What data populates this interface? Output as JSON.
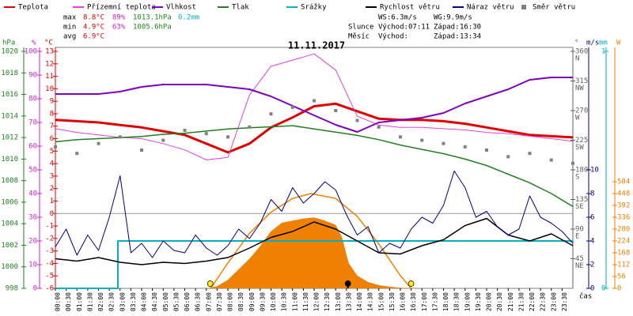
{
  "chart_data": {
    "type": "weather",
    "title": "11.11.2017",
    "x_axis_label": "čas",
    "xlim": [
      0,
      24
    ],
    "x": [
      0,
      1,
      2,
      3,
      4,
      5,
      6,
      7,
      8,
      9,
      10,
      11,
      12,
      13,
      14,
      15,
      16,
      17,
      18,
      19,
      20,
      21,
      22,
      23,
      24
    ],
    "xticks": [
      {
        "value": 0,
        "label": "00:00"
      },
      {
        "value": 0.5,
        "label": "00:30"
      },
      {
        "value": 1,
        "label": "01:00"
      },
      {
        "value": 1.5,
        "label": "01:30"
      },
      {
        "value": 2,
        "label": "02:00"
      },
      {
        "value": 2.5,
        "label": "02:30"
      },
      {
        "value": 3,
        "label": "03:00"
      },
      {
        "value": 3.5,
        "label": "03:30"
      },
      {
        "value": 4,
        "label": "04:00"
      },
      {
        "value": 4.5,
        "label": "04:30"
      },
      {
        "value": 5,
        "label": "05:00"
      },
      {
        "value": 5.5,
        "label": "05:30"
      },
      {
        "value": 6,
        "label": "06:00"
      },
      {
        "value": 6.5,
        "label": "06:30"
      },
      {
        "value": 7,
        "label": "07:00"
      },
      {
        "value": 7.5,
        "label": "07:30"
      },
      {
        "value": 8,
        "label": "08:00"
      },
      {
        "value": 8.5,
        "label": "08:30"
      },
      {
        "value": 9,
        "label": "09:00"
      },
      {
        "value": 9.5,
        "label": "09:30"
      },
      {
        "value": 10,
        "label": "10:00"
      },
      {
        "value": 10.5,
        "label": "10:30"
      },
      {
        "value": 11,
        "label": "11:00"
      },
      {
        "value": 11.5,
        "label": "11:30"
      },
      {
        "value": 12,
        "label": "12:00"
      },
      {
        "value": 12.5,
        "label": "12:30"
      },
      {
        "value": 13,
        "label": "13:00"
      },
      {
        "value": 13.5,
        "label": "13:30"
      },
      {
        "value": 14,
        "label": "14:00"
      },
      {
        "value": 14.5,
        "label": "14:30"
      },
      {
        "value": 15,
        "label": "15:00"
      },
      {
        "value": 15.5,
        "label": "15:30"
      },
      {
        "value": 16,
        "label": "16:00"
      },
      {
        "value": 16.5,
        "label": "16:30"
      },
      {
        "value": 17,
        "label": "17:00"
      },
      {
        "value": 17.5,
        "label": "17:30"
      },
      {
        "value": 18,
        "label": "18:00"
      },
      {
        "value": 18.5,
        "label": "18:30"
      },
      {
        "value": 19,
        "label": "19:00"
      },
      {
        "value": 19.5,
        "label": "19:30"
      },
      {
        "value": 20,
        "label": "20:00"
      },
      {
        "value": 20.5,
        "label": "20:30"
      },
      {
        "value": 21,
        "label": "21:00"
      },
      {
        "value": 21.5,
        "label": "21:30"
      },
      {
        "value": 22,
        "label": "22:00"
      },
      {
        "value": 22.5,
        "label": "22:30"
      },
      {
        "value": 23,
        "label": "23:00"
      },
      {
        "value": 23.5,
        "label": "23:30"
      }
    ],
    "axes": [
      {
        "label": "hPa",
        "color": "#208020",
        "lim": [
          998,
          1020
        ],
        "ticks": [
          1020,
          1018,
          1016,
          1014,
          1012,
          1010,
          1008,
          1006,
          1004,
          1002,
          1000,
          998
        ]
      },
      {
        "label": "%",
        "color": "#d020d0",
        "lim": [
          0,
          100
        ],
        "ticks": [
          100,
          90,
          80,
          70,
          60,
          50,
          40,
          30,
          20,
          10,
          0
        ]
      },
      {
        "label": "°C",
        "color": "#e00000",
        "lim": [
          -6,
          13
        ],
        "ticks": [
          13,
          12,
          11,
          10,
          9,
          8,
          7,
          6,
          5,
          4,
          3,
          2,
          1,
          0,
          -1,
          -2,
          -3,
          -4,
          -5,
          -6
        ]
      },
      {
        "label": "°",
        "color": "#606060",
        "lim": [
          0,
          360
        ],
        "ticks": [
          360,
          315,
          270,
          225,
          180,
          135,
          90,
          45
        ],
        "tick_names": [
          "N",
          "NW",
          "W",
          "SW",
          "S",
          "SE",
          "E",
          "NE"
        ]
      },
      {
        "label": "m/s",
        "color": "#000080",
        "lim": [
          0,
          20
        ],
        "ticks": [
          10,
          8,
          6,
          4,
          2,
          0
        ]
      },
      {
        "label": "mm",
        "color": "#00b0c0",
        "lim": [
          0,
          1
        ],
        "ticks": [
          1,
          0
        ]
      },
      {
        "label": "W",
        "color": "#f08000",
        "lim": [
          0,
          1120
        ],
        "ticks": [
          504,
          448,
          392,
          336,
          280,
          224,
          168,
          112,
          56,
          0
        ]
      }
    ],
    "hlines": [
      {
        "axis": 2,
        "value": 0,
        "color": "#999999"
      }
    ],
    "series": [
      {
        "name": "Teplota",
        "color": "#e00000",
        "axis": 2,
        "kind": "line",
        "width": 3,
        "values": [
          7.5,
          7.4,
          7.3,
          7.1,
          6.9,
          6.6,
          6.3,
          5.6,
          4.9,
          5.6,
          6.9,
          7.7,
          8.6,
          8.8,
          8.2,
          7.6,
          7.5,
          7.5,
          7.4,
          7.2,
          6.9,
          6.6,
          6.3,
          6.2,
          6.1
        ]
      },
      {
        "name": "Přízemní teplota",
        "color": "#e040e0",
        "axis": 2,
        "kind": "line",
        "width": 1,
        "values": [
          6.8,
          6.5,
          6.3,
          6.1,
          6.0,
          5.6,
          5.1,
          4.3,
          4.5,
          9.5,
          11.8,
          12.3,
          12.8,
          11.5,
          7.8,
          7.1,
          6.9,
          6.9,
          6.8,
          6.7,
          6.5,
          6.4,
          6.2,
          6.0,
          5.8
        ]
      },
      {
        "name": "Vlhkost",
        "color": "#8000c0",
        "axis": 1,
        "kind": "line",
        "width": 2,
        "values": [
          82,
          82,
          82,
          83,
          85,
          86,
          86,
          86,
          85,
          84,
          81,
          77,
          73,
          69,
          66,
          70,
          71,
          72,
          74,
          78,
          81,
          84,
          88,
          89,
          89
        ]
      },
      {
        "name": "Tlak",
        "color": "#208020",
        "axis": 0,
        "kind": "line",
        "width": 1.5,
        "values": [
          1011.6,
          1011.8,
          1011.9,
          1012.0,
          1012.1,
          1012.3,
          1012.4,
          1012.6,
          1012.8,
          1012.9,
          1013.0,
          1013.1,
          1012.8,
          1012.5,
          1012.2,
          1011.8,
          1011.3,
          1010.9,
          1010.5,
          1010.0,
          1009.4,
          1008.6,
          1007.8,
          1006.8,
          1005.6
        ]
      },
      {
        "name": "Srážky",
        "color": "#00b0c0",
        "axis": 5,
        "kind": "line",
        "width": 2,
        "x": [
          0,
          2.9,
          2.9,
          24
        ],
        "values": [
          0,
          0,
          0.2,
          0.2
        ]
      },
      {
        "name": "Rychlost větru",
        "color": "#000000",
        "axis": 4,
        "kind": "line",
        "width": 1.5,
        "values": [
          2.5,
          2.3,
          2.6,
          2.2,
          2.0,
          2.2,
          2.1,
          2.3,
          2.6,
          3.4,
          4.3,
          4.8,
          5.6,
          5.0,
          4.0,
          3.0,
          2.9,
          3.6,
          4.1,
          5.3,
          5.9,
          4.5,
          4.0,
          4.6,
          3.6
        ]
      },
      {
        "name": "Náraz větru",
        "color": "#000080",
        "axis": 4,
        "kind": "line",
        "width": 1,
        "x": [
          0,
          0.5,
          1,
          1.5,
          2,
          2.5,
          3,
          3.5,
          4,
          4.5,
          5,
          5.5,
          6,
          6.5,
          7,
          7.5,
          8,
          8.5,
          9,
          9.5,
          10,
          10.5,
          11,
          11.5,
          12,
          12.5,
          13,
          13.5,
          14,
          14.5,
          15,
          15.5,
          16,
          16.5,
          17,
          17.5,
          18,
          18.5,
          19,
          19.5,
          20,
          20.5,
          21,
          21.5,
          22,
          22.5,
          23,
          23.5,
          24
        ],
        "values": [
          3.5,
          5.0,
          2.8,
          4.5,
          3.2,
          6.0,
          9.5,
          3.0,
          3.8,
          2.6,
          4.0,
          3.2,
          3.0,
          4.5,
          3.4,
          2.8,
          3.6,
          5.0,
          4.2,
          5.5,
          7.5,
          6.5,
          8.5,
          7.2,
          8.0,
          9.0,
          8.3,
          6.2,
          4.5,
          5.2,
          3.0,
          3.8,
          3.4,
          5.0,
          6.0,
          5.5,
          7.0,
          9.9,
          8.5,
          6.0,
          6.5,
          5.2,
          4.5,
          5.0,
          7.8,
          6.0,
          5.5,
          4.8,
          3.8
        ]
      },
      {
        "name": "Směr větru",
        "color": "#808080",
        "axis": 3,
        "kind": "scatter",
        "values": [
          215,
          205,
          220,
          230,
          210,
          225,
          240,
          235,
          230,
          245,
          265,
          275,
          285,
          270,
          255,
          245,
          230,
          225,
          220,
          215,
          210,
          200,
          205,
          195,
          190
        ]
      }
    ],
    "solar": {
      "color": "#f08000",
      "axis": 6,
      "x": [
        7,
        7.5,
        8,
        8.5,
        9,
        9.5,
        10,
        10.5,
        11,
        11.5,
        12,
        12.5,
        13,
        13.3,
        13.6,
        14,
        14.5,
        15,
        15.5,
        16,
        16.5
      ],
      "values": [
        0,
        10,
        40,
        90,
        140,
        200,
        270,
        310,
        320,
        330,
        335,
        320,
        300,
        240,
        120,
        60,
        30,
        15,
        8,
        3,
        0
      ]
    },
    "solar_max": {
      "color": "#f08000",
      "axis": 6,
      "x": [
        7.2,
        8,
        9,
        10,
        11,
        11.85,
        13,
        14,
        15,
        16,
        16.5
      ],
      "values": [
        0,
        120,
        260,
        360,
        425,
        448,
        425,
        340,
        210,
        60,
        0
      ]
    },
    "stats": [
      {
        "label": "max",
        "temp": "8.8°C",
        "hum": "89%",
        "press": "1013.1hPa",
        "rain": "0.2mm"
      },
      {
        "label": "min",
        "temp": "4.9°C",
        "hum": "63%",
        "press": "1005.6hPa"
      },
      {
        "label": "avg",
        "temp": "6.9°C"
      }
    ],
    "wind": {
      "ws": "WS:6.3m/s",
      "wg": "WG:9.9m/s"
    },
    "sun": {
      "label": "Slunce",
      "rise_label": "Východ:",
      "rise": "07:11",
      "set_label": "Západ:",
      "set": "16:30"
    },
    "moon": {
      "label": "Měsíc",
      "rise_label": "Východ:",
      "set_label": "Západ:",
      "set": "13:34"
    }
  }
}
